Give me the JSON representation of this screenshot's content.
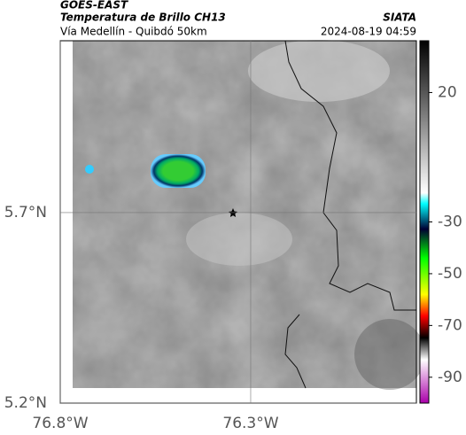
{
  "header": {
    "satellite": "GOES-EAST",
    "title": "Temperatura de Brillo CH13",
    "source": "SIATA",
    "route": "Vía Medellín - Quibdó 50km",
    "timestamp": "2024-08-19 04:59"
  },
  "map": {
    "xlim": [
      -76.8,
      -75.865
    ],
    "ylim": [
      5.2,
      6.151
    ],
    "xticks": [
      {
        "value": -76.8,
        "label": "76.8°W"
      },
      {
        "value": -76.3,
        "label": "76.3°W"
      }
    ],
    "yticks": [
      {
        "value": 5.7,
        "label": "5.7°N"
      },
      {
        "value": 5.2,
        "label": "5.2°N"
      }
    ]
  },
  "colorbar": {
    "clim": [
      -100,
      40
    ],
    "ticks": [
      20,
      -30,
      -50,
      -70,
      -90
    ]
  }
}
